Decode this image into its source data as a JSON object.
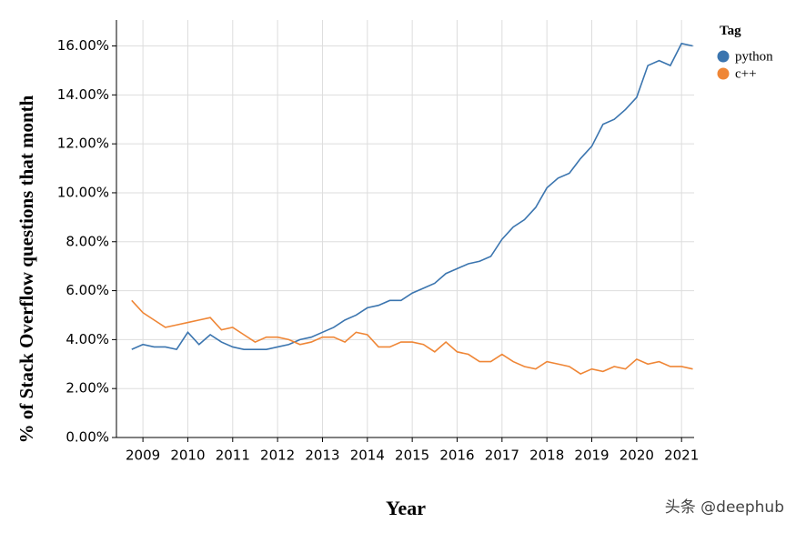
{
  "chart_data": {
    "type": "line",
    "x_label": "Year",
    "y_label": "% of Stack Overflow questions that month",
    "legend_title": "Tag",
    "watermark": "头条 @deephub",
    "grid": true,
    "legend_position": "top-right",
    "x": [
      2008.75,
      2009.0,
      2009.25,
      2009.5,
      2009.75,
      2010.0,
      2010.25,
      2010.5,
      2010.75,
      2011.0,
      2011.25,
      2011.5,
      2011.75,
      2012.0,
      2012.25,
      2012.5,
      2012.75,
      2013.0,
      2013.25,
      2013.5,
      2013.75,
      2014.0,
      2014.25,
      2014.5,
      2014.75,
      2015.0,
      2015.25,
      2015.5,
      2015.75,
      2016.0,
      2016.25,
      2016.5,
      2016.75,
      2017.0,
      2017.25,
      2017.5,
      2017.75,
      2018.0,
      2018.25,
      2018.5,
      2018.75,
      2019.0,
      2019.25,
      2019.5,
      2019.75,
      2020.0,
      2020.25,
      2020.5,
      2020.75,
      2021.0,
      2021.25
    ],
    "series": [
      {
        "name": "python",
        "color": "#3b75af",
        "values": [
          3.6,
          3.8,
          3.7,
          3.7,
          3.6,
          4.3,
          3.8,
          4.2,
          3.9,
          3.7,
          3.6,
          3.6,
          3.6,
          3.7,
          3.8,
          4.0,
          4.1,
          4.3,
          4.5,
          4.8,
          5.0,
          5.3,
          5.4,
          5.6,
          5.6,
          5.9,
          6.1,
          6.3,
          6.7,
          6.9,
          7.1,
          7.2,
          7.4,
          8.1,
          8.6,
          8.9,
          9.4,
          10.2,
          10.6,
          10.8,
          11.4,
          11.9,
          12.8,
          13.0,
          13.4,
          13.9,
          15.2,
          15.4,
          15.2,
          16.1,
          16.0
        ]
      },
      {
        "name": "c++",
        "color": "#ef8636",
        "values": [
          5.6,
          5.1,
          4.8,
          4.5,
          4.6,
          4.7,
          4.8,
          4.9,
          4.4,
          4.5,
          4.2,
          3.9,
          4.1,
          4.1,
          4.0,
          3.8,
          3.9,
          4.1,
          4.1,
          3.9,
          4.3,
          4.2,
          3.7,
          3.7,
          3.9,
          3.9,
          3.8,
          3.5,
          3.9,
          3.5,
          3.4,
          3.1,
          3.1,
          3.4,
          3.1,
          2.9,
          2.8,
          3.1,
          3.0,
          2.9,
          2.6,
          2.8,
          2.7,
          2.9,
          2.8,
          3.2,
          3.0,
          3.1,
          2.9,
          2.9,
          2.8
        ]
      }
    ],
    "xlim": [
      2008.41,
      2021.28
    ],
    "xticks": [
      2009,
      2010,
      2011,
      2012,
      2013,
      2014,
      2015,
      2016,
      2017,
      2018,
      2019,
      2020,
      2021
    ],
    "ylim": [
      0,
      17.06
    ],
    "yticks": [
      {
        "value": 0,
        "label": "0.00%"
      },
      {
        "value": 2,
        "label": "2.00%"
      },
      {
        "value": 4,
        "label": "4.00%"
      },
      {
        "value": 6,
        "label": "6.00%"
      },
      {
        "value": 8,
        "label": "8.00%"
      },
      {
        "value": 10,
        "label": "10.00%"
      },
      {
        "value": 12,
        "label": "12.00%"
      },
      {
        "value": 14,
        "label": "14.00%"
      },
      {
        "value": 16,
        "label": "16.00%"
      }
    ]
  }
}
